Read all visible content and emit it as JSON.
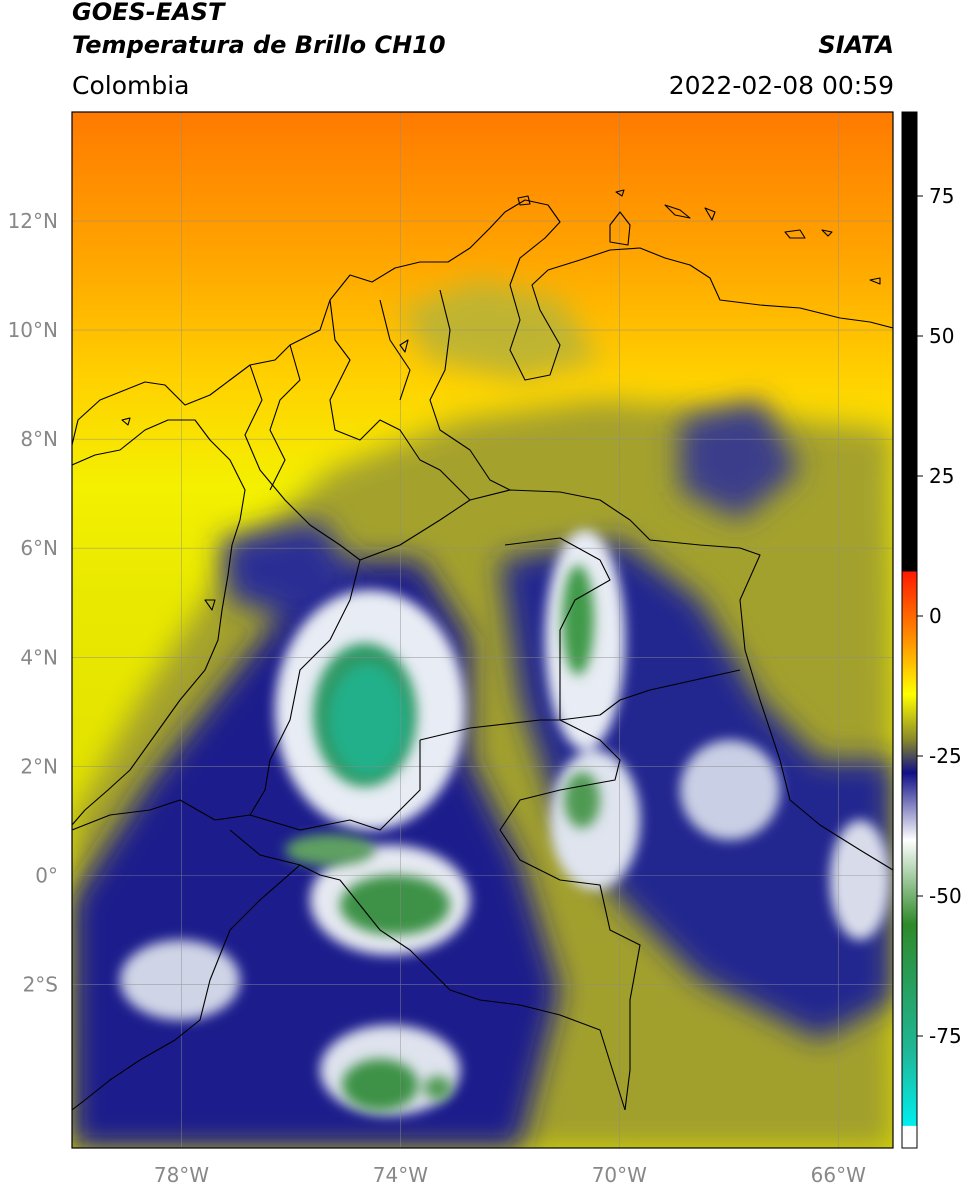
{
  "header": {
    "title_line1": "GOES-EAST",
    "title_line2": "Temperatura de Brillo CH10",
    "brand": "SIATA",
    "region": "Colombia",
    "timestamp": "2022-02-08 00:59"
  },
  "map": {
    "lon_range": [
      -80,
      -65
    ],
    "lat_range": [
      -5,
      14
    ],
    "lon_ticks": [
      {
        "value": -78,
        "label": "78°W"
      },
      {
        "value": -74,
        "label": "74°W"
      },
      {
        "value": -70,
        "label": "70°W"
      },
      {
        "value": -66,
        "label": "66°W"
      }
    ],
    "lat_ticks": [
      {
        "value": 12,
        "label": "12°N"
      },
      {
        "value": 10,
        "label": "10°N"
      },
      {
        "value": 8,
        "label": "8°N"
      },
      {
        "value": 6,
        "label": "6°N"
      },
      {
        "value": 4,
        "label": "4°N"
      },
      {
        "value": 2,
        "label": "2°N"
      },
      {
        "value": 0,
        "label": "0°"
      },
      {
        "value": -2,
        "label": "2°S"
      }
    ],
    "grid": true
  },
  "colorbar": {
    "range": [
      -95,
      90
    ],
    "ticks": [
      {
        "value": 75,
        "label": "75"
      },
      {
        "value": 50,
        "label": "50"
      },
      {
        "value": 25,
        "label": "25"
      },
      {
        "value": 0,
        "label": "0"
      },
      {
        "value": -25,
        "label": "-25"
      },
      {
        "value": -50,
        "label": "-50"
      },
      {
        "value": -75,
        "label": "-75"
      }
    ],
    "stops": [
      {
        "value": 90,
        "color": "#000000"
      },
      {
        "value": 8,
        "color": "#000000"
      },
      {
        "value": 7.9,
        "color": "#ff1a00"
      },
      {
        "value": -5,
        "color": "#ff9900"
      },
      {
        "value": -14,
        "color": "#ffff00"
      },
      {
        "value": -22,
        "color": "#8a8a2a"
      },
      {
        "value": -28,
        "color": "#101088"
      },
      {
        "value": -40,
        "color": "#ffffff"
      },
      {
        "value": -55,
        "color": "#2f8a2a"
      },
      {
        "value": -78,
        "color": "#1fb898"
      },
      {
        "value": -91,
        "color": "#00eeee"
      },
      {
        "value": -91.1,
        "color": "#ffffff"
      },
      {
        "value": -95,
        "color": "#ffffff"
      }
    ]
  }
}
